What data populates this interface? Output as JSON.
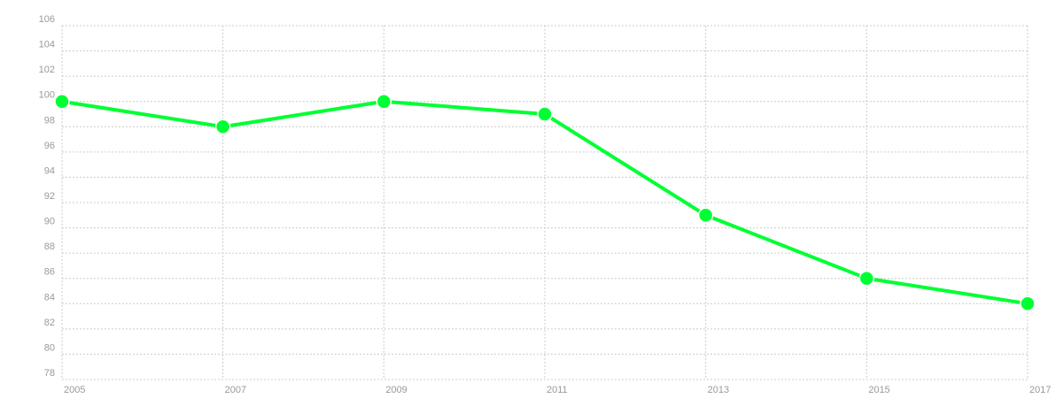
{
  "chart_data": {
    "type": "line",
    "x": [
      2005,
      2007,
      2009,
      2011,
      2013,
      2015,
      2017
    ],
    "series": [
      {
        "name": null,
        "color": "#00ff33",
        "values": [
          100,
          98,
          100,
          99,
          91,
          86,
          84
        ]
      }
    ],
    "xlim": [
      2005,
      2017
    ],
    "xticks": [
      2005,
      2007,
      2009,
      2011,
      2013,
      2015,
      2017
    ],
    "ylim": [
      78,
      106
    ],
    "yticks": [
      78,
      80,
      82,
      84,
      86,
      88,
      90,
      92,
      94,
      96,
      98,
      100,
      102,
      104,
      106
    ],
    "grid": true
  }
}
